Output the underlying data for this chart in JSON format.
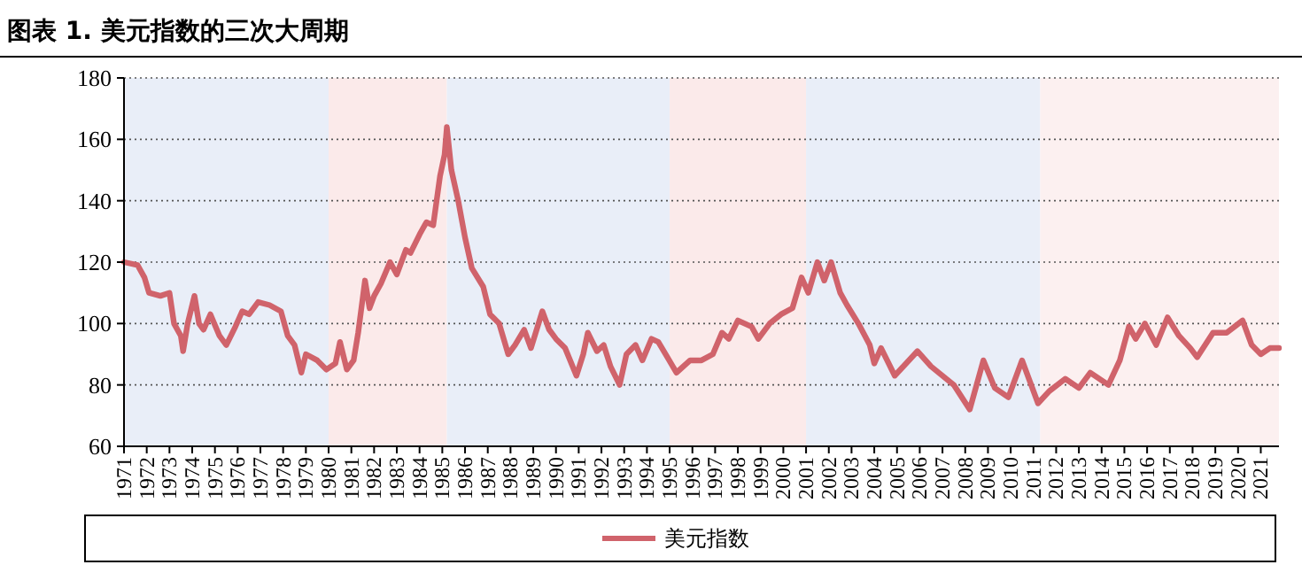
{
  "chart_data": {
    "type": "line",
    "title": "图表 1. 美元指数的三次大周期",
    "xlim": [
      1971,
      2021.8
    ],
    "xticks": [
      1971,
      1972,
      1973,
      1974,
      1975,
      1976,
      1977,
      1978,
      1979,
      1980,
      1981,
      1982,
      1983,
      1984,
      1985,
      1986,
      1987,
      1988,
      1989,
      1990,
      1991,
      1992,
      1993,
      1994,
      1995,
      1996,
      1997,
      1998,
      1999,
      2000,
      2001,
      2002,
      2003,
      2004,
      2005,
      2006,
      2007,
      2008,
      2009,
      2010,
      2011,
      2012,
      2013,
      2014,
      2015,
      2016,
      2017,
      2018,
      2019,
      2020,
      2021
    ],
    "ylim": [
      60,
      180
    ],
    "yticks": [
      60,
      80,
      100,
      120,
      140,
      160,
      180
    ],
    "grid": "y",
    "legend": "bottom",
    "line_style": "solid",
    "marker": "none",
    "bands": [
      {
        "axis": "x",
        "from": 1971,
        "to": 1980,
        "color": "#e9eef8"
      },
      {
        "axis": "x",
        "from": 1980,
        "to": 1985.2,
        "color": "#fbeaea"
      },
      {
        "axis": "x",
        "from": 1985.2,
        "to": 1995,
        "color": "#e9eef8"
      },
      {
        "axis": "x",
        "from": 1995,
        "to": 2001,
        "color": "#fbeaea"
      },
      {
        "axis": "x",
        "from": 2001,
        "to": 2011.3,
        "color": "#e9eef8"
      },
      {
        "axis": "x",
        "from": 2011.3,
        "to": 2021.8,
        "color": "#fcf0f0"
      }
    ],
    "x": [
      1971.0,
      1971.6,
      1971.9,
      1972.1,
      1972.6,
      1973.0,
      1973.2,
      1973.5,
      1973.6,
      1973.8,
      1974.1,
      1974.3,
      1974.5,
      1974.8,
      1975.2,
      1975.5,
      1975.9,
      1976.2,
      1976.5,
      1976.9,
      1977.4,
      1977.9,
      1978.2,
      1978.5,
      1978.8,
      1979.0,
      1979.5,
      1979.9,
      1980.3,
      1980.5,
      1980.8,
      1981.1,
      1981.3,
      1981.6,
      1981.8,
      1982.0,
      1982.3,
      1982.7,
      1983.0,
      1983.4,
      1983.6,
      1984.0,
      1984.3,
      1984.6,
      1984.9,
      1985.1,
      1985.2,
      1985.4,
      1985.7,
      1986.0,
      1986.3,
      1986.8,
      1987.1,
      1987.5,
      1987.9,
      1988.2,
      1988.6,
      1988.9,
      1989.4,
      1989.7,
      1990.0,
      1990.4,
      1990.9,
      1991.2,
      1991.4,
      1991.8,
      1992.1,
      1992.4,
      1992.8,
      1993.1,
      1993.5,
      1993.8,
      1994.2,
      1994.5,
      1994.9,
      1995.3,
      1995.9,
      1996.4,
      1996.9,
      1997.3,
      1997.6,
      1998.0,
      1998.6,
      1998.9,
      1999.4,
      1999.9,
      2000.4,
      2000.8,
      2001.1,
      2001.5,
      2001.8,
      2002.1,
      2002.5,
      2002.8,
      2003.3,
      2003.8,
      2004.0,
      2004.3,
      2004.9,
      2005.9,
      2006.5,
      2007.5,
      2008.2,
      2008.8,
      2009.3,
      2009.9,
      2010.5,
      2011.2,
      2011.7,
      2012.4,
      2013.0,
      2013.5,
      2014.3,
      2014.8,
      2015.2,
      2015.5,
      2015.9,
      2016.4,
      2016.9,
      2017.4,
      2017.9,
      2018.2,
      2018.9,
      2019.5,
      2020.2,
      2020.6,
      2021.0,
      2021.4,
      2021.8
    ],
    "series": [
      {
        "name": "美元指数",
        "color": "#d0636b",
        "values": [
          120,
          119,
          115,
          110,
          109,
          110,
          100,
          96,
          91,
          100,
          109,
          100,
          98,
          103,
          96,
          93,
          99,
          104,
          103,
          107,
          106,
          104,
          96,
          93,
          84,
          90,
          88,
          85,
          87,
          94,
          85,
          88,
          97,
          114,
          105,
          109,
          113,
          120,
          116,
          124,
          123,
          129,
          133,
          132,
          148,
          155,
          164,
          150,
          140,
          128,
          118,
          112,
          103,
          100,
          90,
          93,
          98,
          92,
          104,
          98,
          95,
          92,
          83,
          90,
          97,
          91,
          93,
          86,
          80,
          90,
          93,
          88,
          95,
          94,
          89,
          84,
          88,
          88,
          90,
          97,
          95,
          101,
          99,
          95,
          100,
          103,
          105,
          115,
          110,
          120,
          114,
          120,
          110,
          106,
          100,
          93,
          87,
          92,
          83,
          91,
          86,
          80,
          72,
          88,
          79,
          76,
          88,
          74,
          78,
          82,
          79,
          84,
          80,
          88,
          99,
          95,
          100,
          93,
          102,
          96,
          92,
          89,
          97,
          97,
          101,
          93,
          90,
          92,
          92
        ]
      }
    ]
  }
}
